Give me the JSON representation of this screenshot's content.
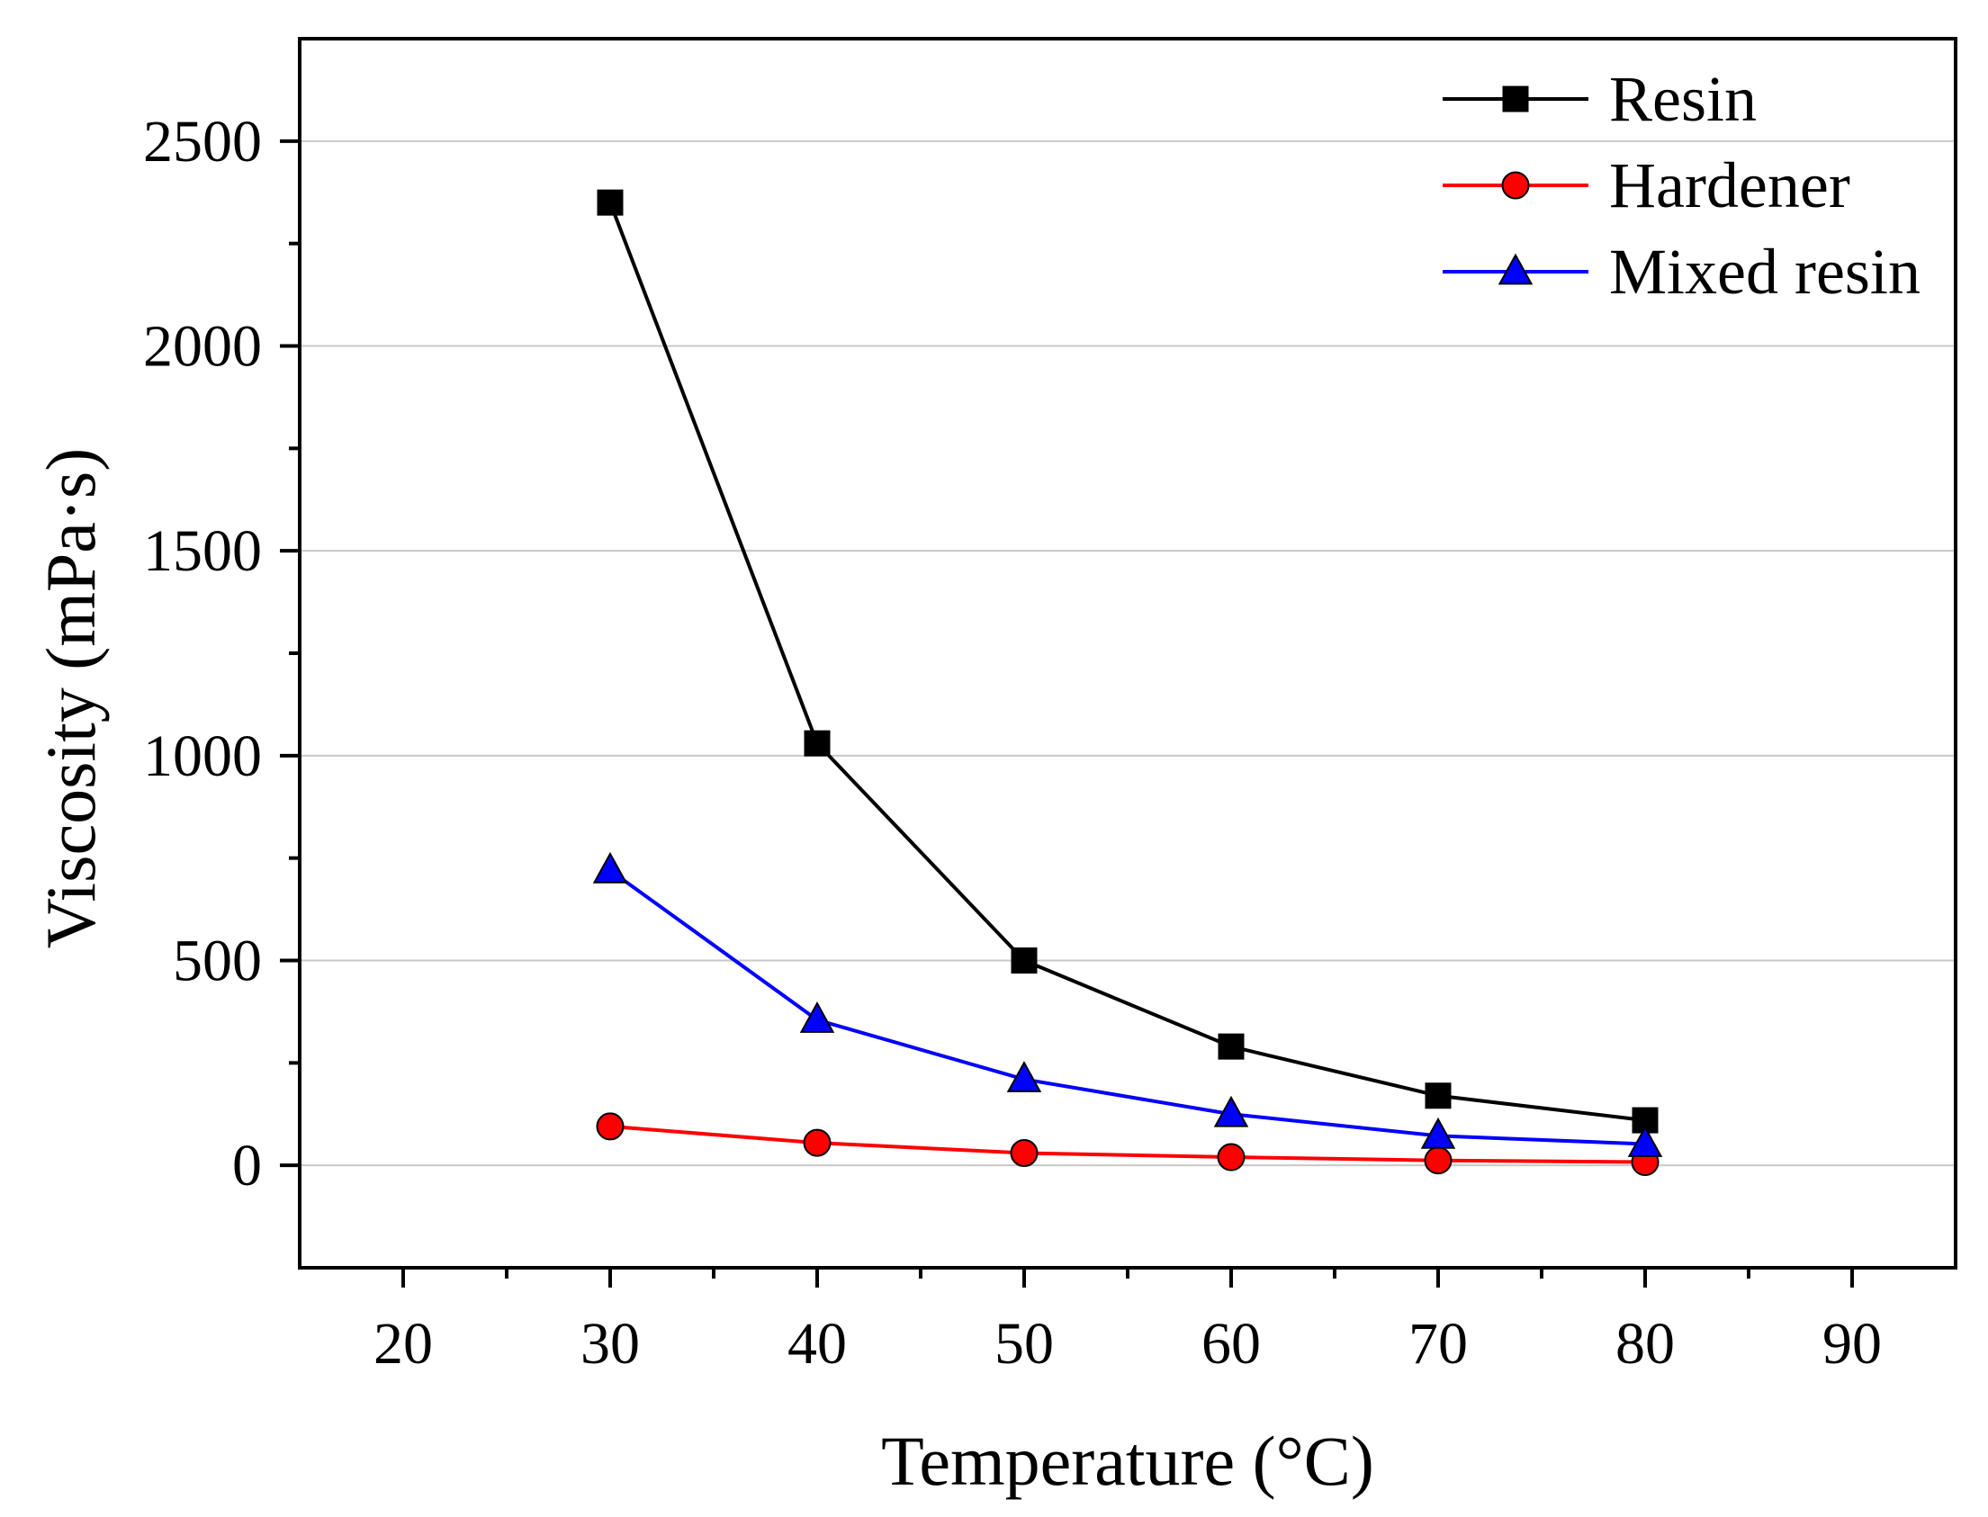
{
  "chart_data": {
    "type": "line",
    "title": "",
    "xlabel": "Temperature (°C)",
    "ylabel": "Viscosity (mPa·s)",
    "xlim": [
      15,
      95
    ],
    "ylim": [
      -250,
      2750
    ],
    "xticks": [
      "20",
      "30",
      "40",
      "50",
      "60",
      "70",
      "80",
      "90"
    ],
    "yticks": [
      "0",
      "500",
      "1000",
      "1500",
      "2000",
      "2500"
    ],
    "grid": "horizontal",
    "legend_position": "top-right",
    "x": [
      30,
      40,
      50,
      60,
      70,
      80
    ],
    "series": [
      {
        "name": "Resin",
        "color": "#000000",
        "marker": "square",
        "values": [
          2350,
          1030,
          500,
          290,
          170,
          110
        ]
      },
      {
        "name": "Hardener",
        "color": "#ff0000",
        "marker": "circle",
        "values": [
          95,
          55,
          30,
          20,
          12,
          8
        ]
      },
      {
        "name": "Mixed resin",
        "color": "#0000ff",
        "marker": "triangle",
        "values": [
          720,
          355,
          210,
          125,
          72,
          52
        ]
      }
    ]
  }
}
